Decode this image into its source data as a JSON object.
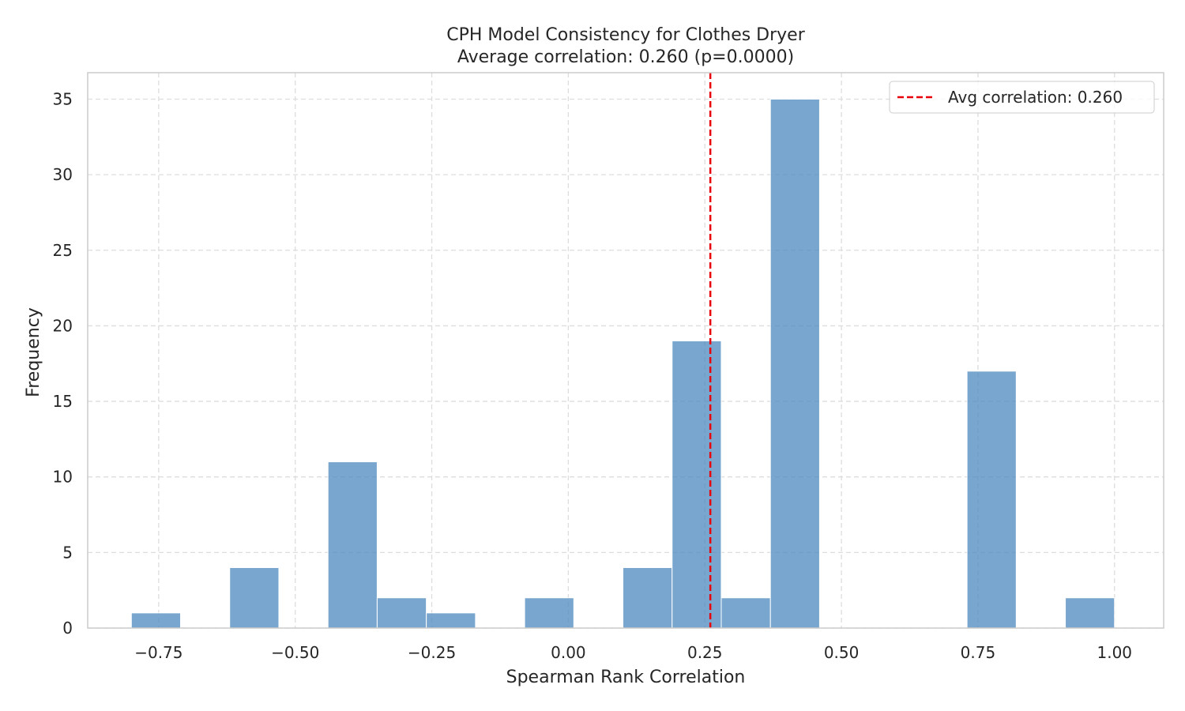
{
  "chart_data": {
    "type": "bar",
    "title": "CPH Model Consistency for Clothes Dryer",
    "subtitle": "Average correlation: 0.260 (p=0.0000)",
    "xlabel": "Spearman Rank Correlation",
    "ylabel": "Frequency",
    "xlim": [
      -0.88,
      1.09
    ],
    "ylim": [
      0,
      36.75
    ],
    "xticks": [
      -0.75,
      -0.5,
      -0.25,
      0.0,
      0.25,
      0.5,
      0.75,
      1.0
    ],
    "xtick_labels": [
      "−0.75",
      "−0.50",
      "−0.25",
      "0.00",
      "0.25",
      "0.50",
      "0.75",
      "1.00"
    ],
    "yticks": [
      0,
      5,
      10,
      15,
      20,
      25,
      30,
      35
    ],
    "ytick_labels": [
      "0",
      "5",
      "10",
      "15",
      "20",
      "25",
      "30",
      "35"
    ],
    "bin_edges": [
      -0.8,
      -0.71,
      -0.62,
      -0.53,
      -0.44,
      -0.35,
      -0.26,
      -0.17,
      -0.08,
      0.01,
      0.1,
      0.19,
      0.28,
      0.37,
      0.46,
      0.55,
      0.64,
      0.73,
      0.82,
      0.91,
      1.0
    ],
    "counts": [
      1,
      0,
      4,
      0,
      11,
      2,
      1,
      0,
      2,
      0,
      4,
      19,
      2,
      35,
      0,
      0,
      0,
      17,
      0,
      2
    ],
    "reference_line": {
      "x": 0.26,
      "label": "Avg correlation: 0.260",
      "color": "#e8000b",
      "style": "dashed"
    },
    "bar_color": "#4c88bd",
    "grid": true,
    "legend_position": "top-right"
  }
}
